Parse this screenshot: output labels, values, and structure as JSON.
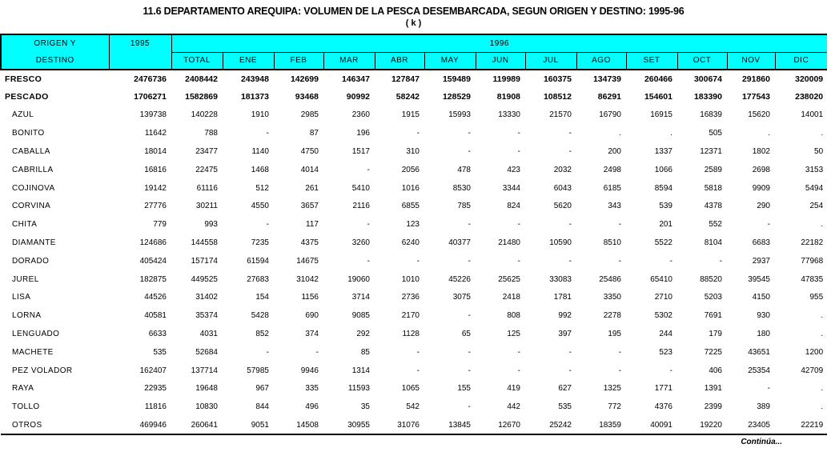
{
  "title": "11.6 DEPARTAMENTO AREQUIPA:  VOLUMEN DE LA PESCA DESEMBARCADA, SEGUN ORIGEN Y DESTINO: 1995-96",
  "subtitle": "( k )",
  "footer": "Continúa...",
  "colors": {
    "header_bg": "#00FFFF",
    "border": "#000000",
    "background": "#FFFFFF",
    "text": "#000000"
  },
  "table": {
    "header": {
      "origin_line1": "ORIGEN Y",
      "origin_line2": "DESTINO",
      "year_prev": "1995",
      "year_span": "1996",
      "months": [
        "TOTAL",
        "ENE",
        "FEB",
        "MAR",
        "ABR",
        "MAY",
        "JUN",
        "JUL",
        "AGO",
        "SET",
        "OCT",
        "NOV",
        "DIC"
      ]
    },
    "rows": [
      {
        "label": "FRESCO",
        "bold": true,
        "indent": false,
        "values": [
          "2476736",
          "2408442",
          "243948",
          "142699",
          "146347",
          "127847",
          "159489",
          "119989",
          "160375",
          "134739",
          "260466",
          "300674",
          "291860",
          "320009"
        ]
      },
      {
        "label": "PESCADO",
        "bold": true,
        "indent": false,
        "values": [
          "1706271",
          "1582869",
          "181373",
          "93468",
          "90992",
          "58242",
          "128529",
          "81908",
          "108512",
          "86291",
          "154601",
          "183390",
          "177543",
          "238020"
        ]
      },
      {
        "label": "AZUL",
        "bold": false,
        "indent": true,
        "values": [
          "139738",
          "140228",
          "1910",
          "2985",
          "2360",
          "1915",
          "15993",
          "13330",
          "21570",
          "16790",
          "16915",
          "16839",
          "15620",
          "14001"
        ]
      },
      {
        "label": "BONITO",
        "bold": false,
        "indent": true,
        "values": [
          "11642",
          "788",
          "-",
          "87",
          "196",
          "-",
          "-",
          "-",
          "-",
          ".",
          ".",
          "505",
          ".",
          "."
        ]
      },
      {
        "label": "CABALLA",
        "bold": false,
        "indent": true,
        "values": [
          "18014",
          "23477",
          "1140",
          "4750",
          "1517",
          "310",
          "-",
          "-",
          "-",
          "200",
          "1337",
          "12371",
          "1802",
          "50"
        ]
      },
      {
        "label": "CABRILLA",
        "bold": false,
        "indent": true,
        "values": [
          "16816",
          "22475",
          "1468",
          "4014",
          "-",
          "2056",
          "478",
          "423",
          "2032",
          "2498",
          "1066",
          "2589",
          "2698",
          "3153"
        ]
      },
      {
        "label": "COJINOVA",
        "bold": false,
        "indent": true,
        "values": [
          "19142",
          "61116",
          "512",
          "261",
          "5410",
          "1016",
          "8530",
          "3344",
          "6043",
          "6185",
          "8594",
          "5818",
          "9909",
          "5494"
        ]
      },
      {
        "label": "CORVINA",
        "bold": false,
        "indent": true,
        "values": [
          "27776",
          "30211",
          "4550",
          "3657",
          "2116",
          "6855",
          "785",
          "824",
          "5620",
          "343",
          "539",
          "4378",
          "290",
          "254"
        ]
      },
      {
        "label": "CHITA",
        "bold": false,
        "indent": true,
        "values": [
          "779",
          "993",
          "-",
          "117",
          "-",
          "123",
          "-",
          "-",
          "-",
          "-",
          "201",
          "552",
          "-",
          "."
        ]
      },
      {
        "label": "DIAMANTE",
        "bold": false,
        "indent": true,
        "values": [
          "124686",
          "144558",
          "7235",
          "4375",
          "3260",
          "6240",
          "40377",
          "21480",
          "10590",
          "8510",
          "5522",
          "8104",
          "6683",
          "22182"
        ]
      },
      {
        "label": "DORADO",
        "bold": false,
        "indent": true,
        "values": [
          "405424",
          "157174",
          "61594",
          "14675",
          "-",
          "-",
          "-",
          "-",
          "-",
          "-",
          "-",
          "-",
          "2937",
          "77968"
        ]
      },
      {
        "label": "JUREL",
        "bold": false,
        "indent": true,
        "values": [
          "182875",
          "449525",
          "27683",
          "31042",
          "19060",
          "1010",
          "45226",
          "25625",
          "33083",
          "25486",
          "65410",
          "88520",
          "39545",
          "47835"
        ]
      },
      {
        "label": "LISA",
        "bold": false,
        "indent": true,
        "values": [
          "44526",
          "31402",
          "154",
          "1156",
          "3714",
          "2736",
          "3075",
          "2418",
          "1781",
          "3350",
          "2710",
          "5203",
          "4150",
          "955"
        ]
      },
      {
        "label": "LORNA",
        "bold": false,
        "indent": true,
        "values": [
          "40581",
          "35374",
          "5428",
          "690",
          "9085",
          "2170",
          "-",
          "808",
          "992",
          "2278",
          "5302",
          "7691",
          "930",
          "."
        ]
      },
      {
        "label": "LENGUADO",
        "bold": false,
        "indent": true,
        "values": [
          "6633",
          "4031",
          "852",
          "374",
          "292",
          "1128",
          "65",
          "125",
          "397",
          "195",
          "244",
          "179",
          "180",
          "."
        ]
      },
      {
        "label": "MACHETE",
        "bold": false,
        "indent": true,
        "values": [
          "535",
          "52684",
          "-",
          "-",
          "85",
          "-",
          "-",
          "-",
          "-",
          "-",
          "523",
          "7225",
          "43651",
          "1200"
        ]
      },
      {
        "label": "PEZ VOLADOR",
        "bold": false,
        "indent": true,
        "values": [
          "162407",
          "137714",
          "57985",
          "9946",
          "1314",
          "-",
          "-",
          "-",
          "-",
          "-",
          "-",
          "406",
          "25354",
          "42709"
        ]
      },
      {
        "label": "RAYA",
        "bold": false,
        "indent": true,
        "values": [
          "22935",
          "19648",
          "967",
          "335",
          "11593",
          "1065",
          "155",
          "419",
          "627",
          "1325",
          "1771",
          "1391",
          "-",
          "."
        ]
      },
      {
        "label": "TOLLO",
        "bold": false,
        "indent": true,
        "values": [
          "11816",
          "10830",
          "844",
          "496",
          "35",
          "542",
          "-",
          "442",
          "535",
          "772",
          "4376",
          "2399",
          "389",
          "."
        ]
      },
      {
        "label": "OTROS",
        "bold": false,
        "indent": true,
        "values": [
          "469946",
          "260641",
          "9051",
          "14508",
          "30955",
          "31076",
          "13845",
          "12670",
          "25242",
          "18359",
          "40091",
          "19220",
          "23405",
          "22219"
        ]
      }
    ]
  }
}
